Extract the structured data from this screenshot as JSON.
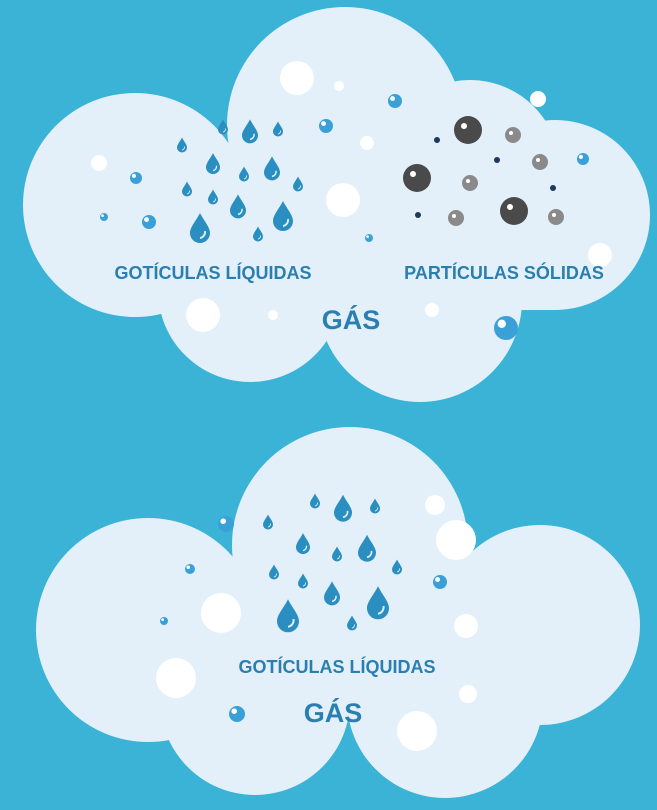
{
  "clouds": [
    {
      "labels": [
        "GOTÍCULAS LÍQUIDAS",
        "PARTÍCULAS SÓLIDAS"
      ],
      "medium": "GÁS"
    },
    {
      "labels": [
        "GOTÍCULAS LÍQUIDAS"
      ],
      "medium": "GÁS"
    }
  ]
}
